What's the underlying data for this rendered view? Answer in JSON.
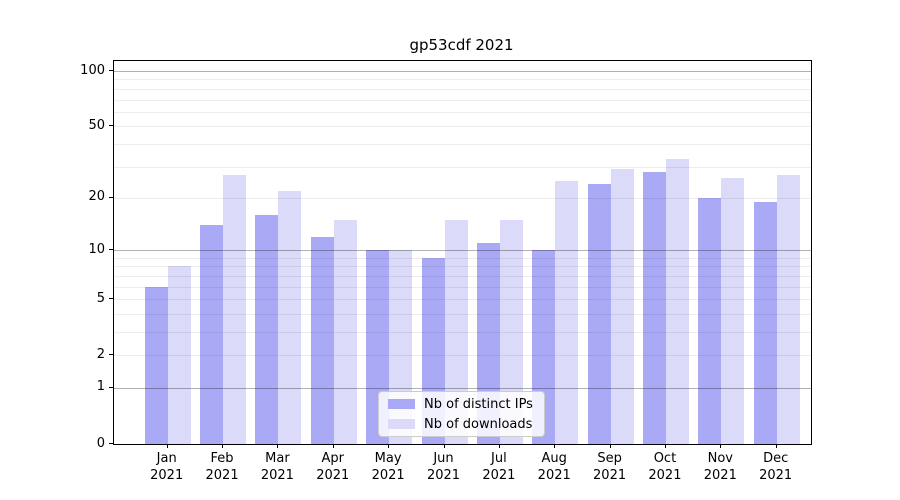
{
  "title": "gp53cdf 2021",
  "legend": {
    "items": [
      {
        "label": "Nb of distinct IPs",
        "color": "#a9a9f6"
      },
      {
        "label": "Nb of downloads",
        "color": "#dbdbf9"
      }
    ]
  },
  "axes": {
    "y_tick_labels": [
      "0",
      "1",
      "2",
      "5",
      "10",
      "20",
      "50",
      "100"
    ],
    "x_month_line2": "2021"
  },
  "colors": {
    "distinct_ips_bar": "#a9a9f6",
    "downloads_bar": "#dbdbf9",
    "axis_line": "#000000",
    "legend_border": "#cccccc"
  },
  "chart_data": {
    "type": "bar",
    "title": "gp53cdf 2021",
    "y_scale": "symlog: position proportional to log(1+v), 0 at baseline",
    "ylim": [
      0,
      113
    ],
    "y_ticks": [
      0,
      1,
      2,
      5,
      10,
      20,
      50,
      100
    ],
    "major_gridlines": [
      1,
      10,
      100
    ],
    "minor_gridlines": [
      2,
      3,
      4,
      5,
      6,
      7,
      8,
      9,
      20,
      30,
      40,
      50,
      60,
      70,
      80,
      90
    ],
    "grid": "on, drawn over bars",
    "legend_position": "inside plot, bottom center",
    "categories": [
      "Jan 2021",
      "Feb 2021",
      "Mar 2021",
      "Apr 2021",
      "May 2021",
      "Jun 2021",
      "Jul 2021",
      "Aug 2021",
      "Sep 2021",
      "Oct 2021",
      "Nov 2021",
      "Dec 2021"
    ],
    "month_labels": [
      "Jan",
      "Feb",
      "Mar",
      "Apr",
      "May",
      "Jun",
      "Jul",
      "Aug",
      "Sep",
      "Oct",
      "Nov",
      "Dec"
    ],
    "year_label": "2021",
    "series": [
      {
        "name": "Nb of distinct IPs",
        "color": "#a9a9f6",
        "values": [
          6,
          14,
          16,
          12,
          10,
          9,
          11,
          10,
          24,
          28,
          20,
          19
        ]
      },
      {
        "name": "Nb of downloads",
        "color": "#dbdbf9",
        "values": [
          8,
          27,
          22,
          15,
          10,
          15,
          15,
          25,
          29,
          33,
          26,
          27
        ]
      }
    ]
  }
}
